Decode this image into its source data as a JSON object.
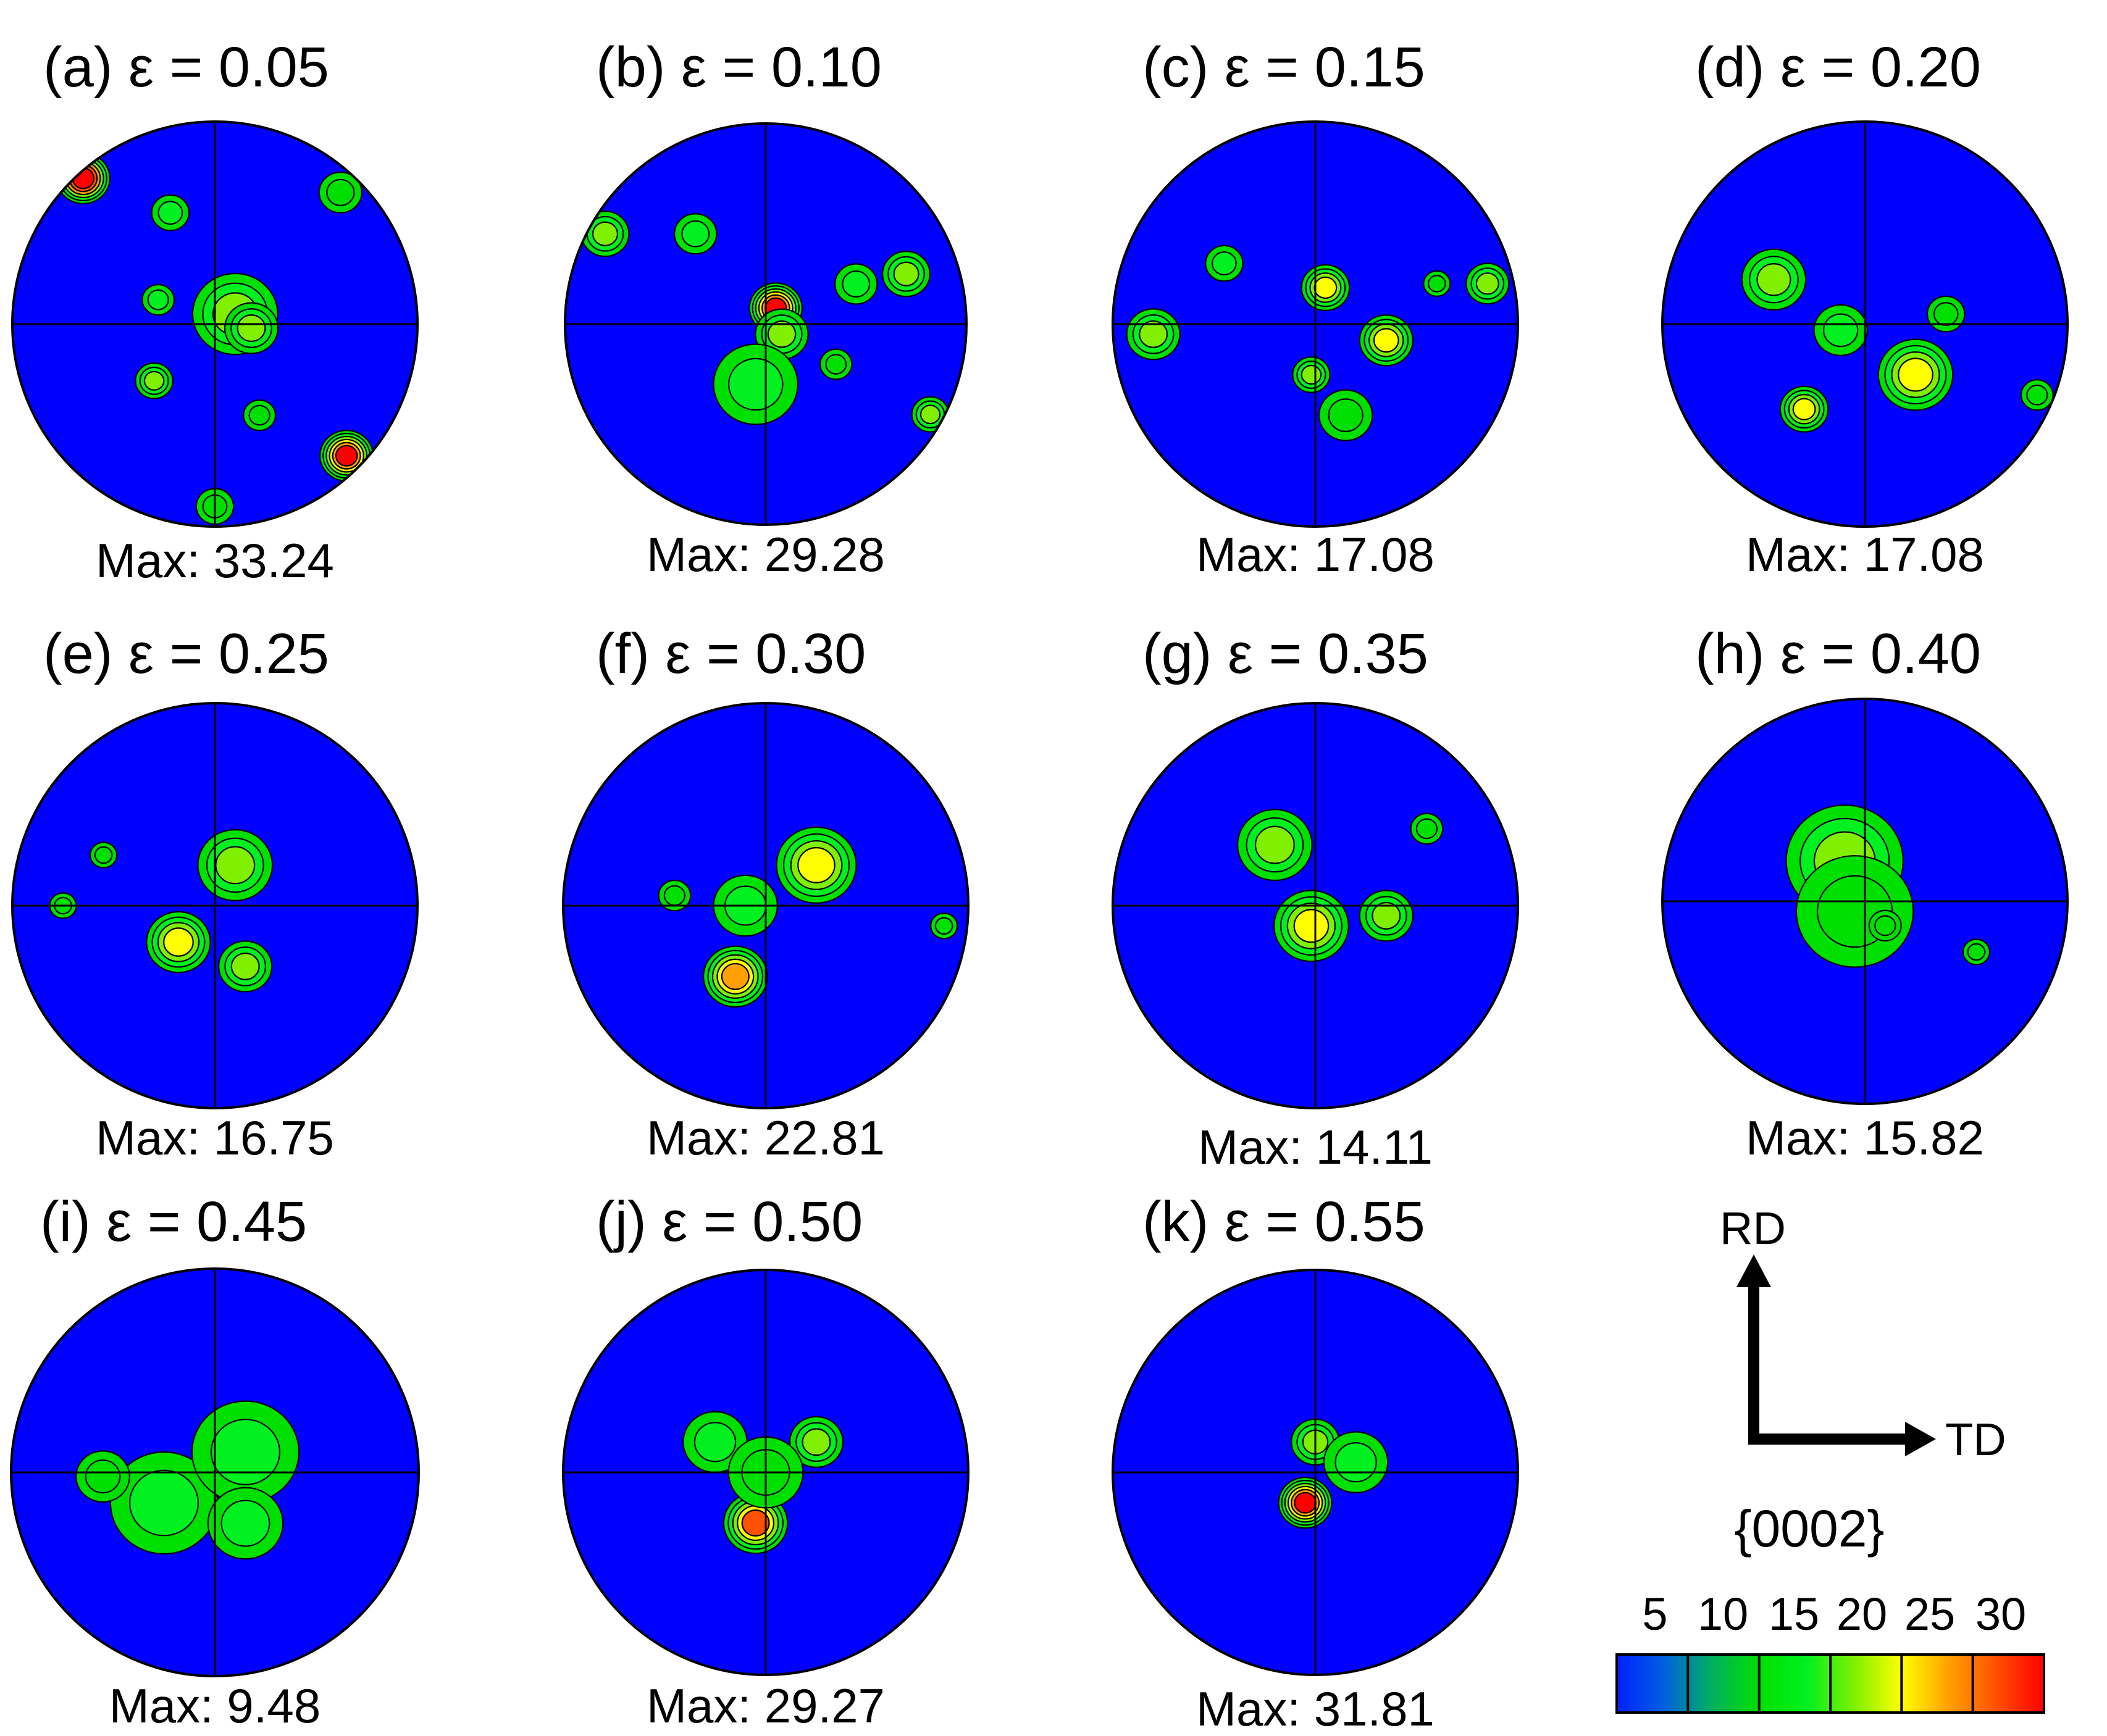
{
  "colors": {
    "background": "#0000ff",
    "contour_line": "#000000",
    "colorbar_stops": [
      "#0020ff",
      "#0060e0",
      "#00b060",
      "#00e000",
      "#00f020",
      "#80f000",
      "#ffff00",
      "#ffa000",
      "#ff5000",
      "#ff0000"
    ]
  },
  "pole_figures": [
    {
      "label": "(a) ε = 0.05",
      "max_text": "Max: 33.24",
      "max": 33.24
    },
    {
      "label": "(b) ε = 0.10",
      "max_text": "Max: 29.28",
      "max": 29.28
    },
    {
      "label": "(c) ε = 0.15",
      "max_text": "Max: 17.08",
      "max": 17.08
    },
    {
      "label": "(d) ε = 0.20",
      "max_text": "Max: 17.08",
      "max": 17.08
    },
    {
      "label": "(e) ε = 0.25",
      "max_text": "Max: 16.75",
      "max": 16.75
    },
    {
      "label": "(f) ε = 0.30",
      "max_text": "Max: 22.81",
      "max": 22.81
    },
    {
      "label": "(g) ε = 0.35",
      "max_text": "Max: 14.11",
      "max": 14.11
    },
    {
      "label": "(h) ε = 0.40",
      "max_text": "Max: 15.82",
      "max": 15.82
    },
    {
      "label": "(i) ε = 0.45",
      "max_text": "Max: 9.48",
      "max": 9.48
    },
    {
      "label": "(j) ε = 0.50",
      "max_text": "Max: 29.27",
      "max": 29.27
    },
    {
      "label": "(k) ε = 0.55",
      "max_text": "Max: 31.81",
      "max": 31.81
    }
  ],
  "axes": {
    "rd_label": "RD",
    "td_label": "TD",
    "plane_label": "{0002}"
  },
  "colorbar": {
    "ticks": [
      "5",
      "10",
      "15",
      "20",
      "25",
      "30"
    ]
  }
}
